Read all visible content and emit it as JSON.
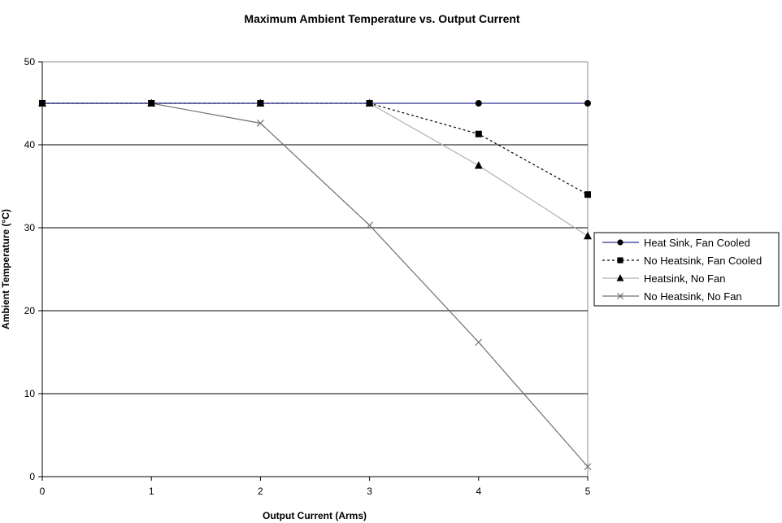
{
  "chart_data": {
    "type": "line",
    "title": "Maximum Ambient Temperature vs. Output Current",
    "xlabel": "Output Current (Arms)",
    "ylabel": "Ambient Temperature (°C)",
    "x": [
      0,
      1,
      2,
      3,
      4,
      5
    ],
    "xlim": [
      0,
      5
    ],
    "ylim": [
      0,
      50
    ],
    "xticks": [
      0,
      1,
      2,
      3,
      4,
      5
    ],
    "yticks": [
      0,
      10,
      20,
      30,
      40,
      50
    ],
    "grid": "horizontal",
    "legend_position": "right",
    "series": [
      {
        "name": "Heat Sink, Fan Cooled",
        "values": [
          45,
          45,
          45,
          45,
          45,
          45
        ],
        "color": "#2e3192",
        "marker": "circle",
        "dash": "solid"
      },
      {
        "name": "No Heatsink, Fan Cooled",
        "values": [
          45,
          45,
          45,
          45,
          41.3,
          34
        ],
        "color": "#000000",
        "marker": "square",
        "dash": "dashed"
      },
      {
        "name": "Heatsink, No Fan",
        "values": [
          45,
          45,
          45,
          45,
          37.5,
          29
        ],
        "color": "#b0b0b0",
        "marker": "triangle",
        "dash": "solid"
      },
      {
        "name": "No Heatsink, No Fan",
        "values": [
          45,
          45,
          42.6,
          30.3,
          16.2,
          1.2
        ],
        "color": "#707070",
        "marker": "x",
        "dash": "solid"
      }
    ]
  }
}
